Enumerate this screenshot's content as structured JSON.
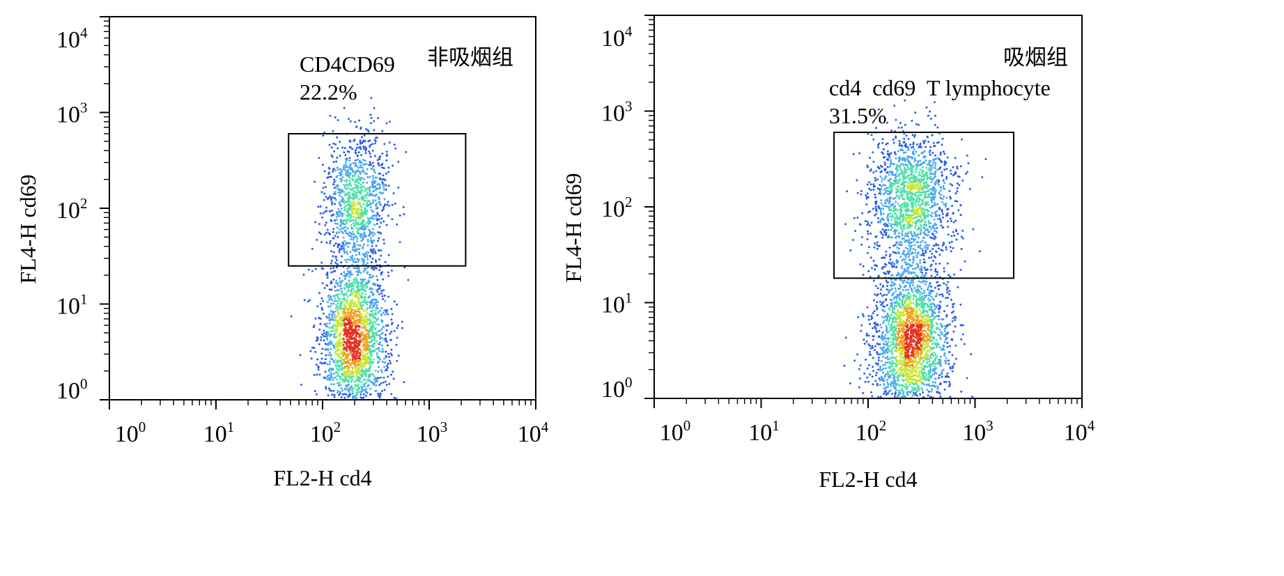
{
  "chart_data": [
    {
      "type": "scatter",
      "group_label": "非吸烟组",
      "gate_name": "CD4CD69",
      "gate_percent": "22.2%",
      "xlabel": "FL2-H cd4",
      "ylabel": "FL4-H cd69",
      "x_scale": "log",
      "y_scale": "log",
      "xlim": [
        1,
        10000
      ],
      "ylim": [
        1,
        10000
      ],
      "x_ticks": [
        {
          "base": "10",
          "exp": "0",
          "value": 1
        },
        {
          "base": "10",
          "exp": "1",
          "value": 10
        },
        {
          "base": "10",
          "exp": "2",
          "value": 100
        },
        {
          "base": "10",
          "exp": "3",
          "value": 1000
        },
        {
          "base": "10",
          "exp": "4",
          "value": 10000
        }
      ],
      "y_ticks": [
        {
          "base": "10",
          "exp": "0",
          "value": 1
        },
        {
          "base": "10",
          "exp": "1",
          "value": 10
        },
        {
          "base": "10",
          "exp": "2",
          "value": 100
        },
        {
          "base": "10",
          "exp": "3",
          "value": 1000
        },
        {
          "base": "10",
          "exp": "4",
          "value": 10000
        }
      ],
      "gate": {
        "x": [
          48,
          2200
        ],
        "y": [
          25,
          600
        ]
      },
      "populations": [
        {
          "name": "low",
          "center_x": 200,
          "center_y": 4.5,
          "spread_log_x": 0.16,
          "spread_log_y": 0.42,
          "count": 2000
        },
        {
          "name": "high",
          "center_x": 210,
          "center_y": 120,
          "spread_log_x": 0.15,
          "spread_log_y": 0.36,
          "count": 1000
        }
      ],
      "density_colors": [
        "#2a5ee8",
        "#4aa8f0",
        "#50e0a8",
        "#c8e838",
        "#f0a020",
        "#e83020"
      ]
    },
    {
      "type": "scatter",
      "group_label": "吸烟组",
      "gate_name": "cd4  cd69  T lymphocyte",
      "gate_percent": "31.5%",
      "xlabel": "FL2-H cd4",
      "ylabel": "FL4-H cd69",
      "x_scale": "log",
      "y_scale": "log",
      "xlim": [
        1,
        10000
      ],
      "ylim": [
        1,
        10000
      ],
      "x_ticks": [
        {
          "base": "10",
          "exp": "0",
          "value": 1
        },
        {
          "base": "10",
          "exp": "1",
          "value": 10
        },
        {
          "base": "10",
          "exp": "2",
          "value": 100
        },
        {
          "base": "10",
          "exp": "3",
          "value": 1000
        },
        {
          "base": "10",
          "exp": "4",
          "value": 10000
        }
      ],
      "y_ticks": [
        {
          "base": "10",
          "exp": "0",
          "value": 1
        },
        {
          "base": "10",
          "exp": "1",
          "value": 10
        },
        {
          "base": "10",
          "exp": "2",
          "value": 100
        },
        {
          "base": "10",
          "exp": "3",
          "value": 1000
        },
        {
          "base": "10",
          "exp": "4",
          "value": 10000
        }
      ],
      "gate": {
        "x": [
          48,
          2300
        ],
        "y": [
          18,
          600
        ]
      },
      "populations": [
        {
          "name": "low",
          "center_x": 250,
          "center_y": 4,
          "spread_log_x": 0.18,
          "spread_log_y": 0.42,
          "count": 2300
        },
        {
          "name": "high",
          "center_x": 250,
          "center_y": 120,
          "spread_log_x": 0.2,
          "spread_log_y": 0.36,
          "count": 1500
        }
      ],
      "density_colors": [
        "#2a5ee8",
        "#4aa8f0",
        "#50e0a8",
        "#c8e838",
        "#f0a020",
        "#e83020"
      ]
    }
  ]
}
